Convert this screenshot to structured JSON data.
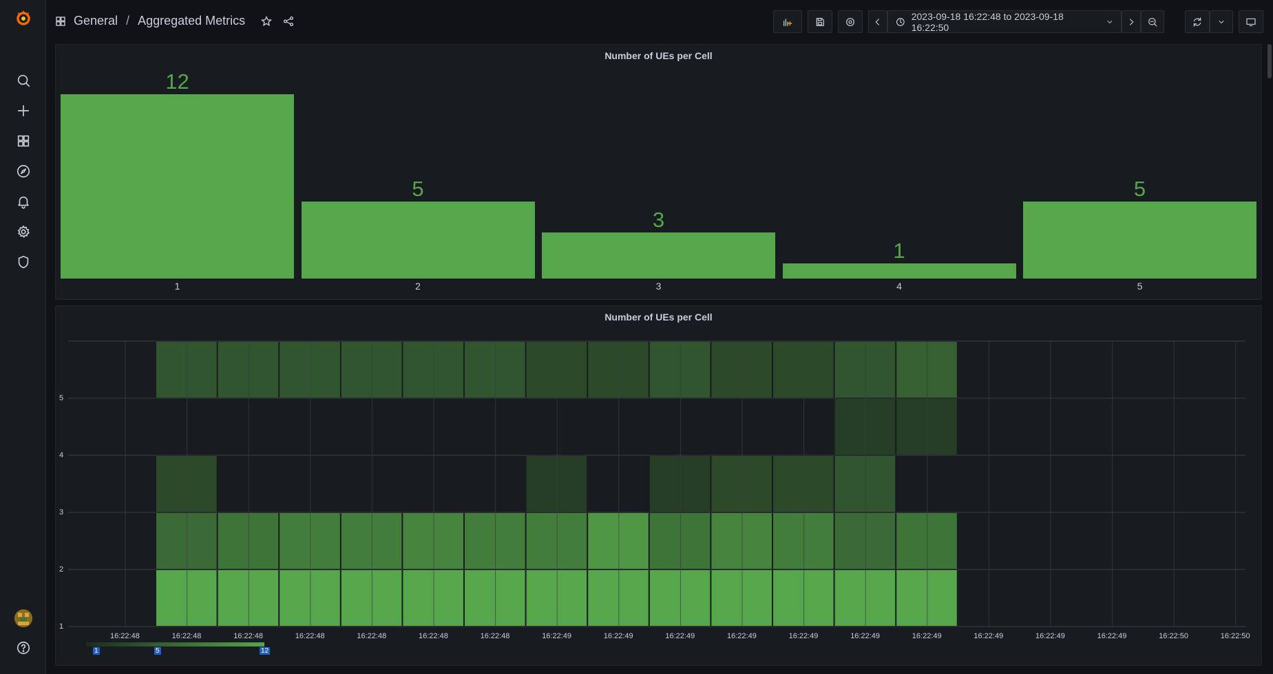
{
  "breadcrumb": {
    "folder": "General",
    "separator": "/",
    "title": "Aggregated Metrics"
  },
  "toolbar": {
    "time_range": "2023-09-18 16:22:48 to 2023-09-18 16:22:50"
  },
  "icons": {
    "logo": "grafana-logo-icon",
    "sidebar": [
      "search-icon",
      "plus-icon",
      "dashboards-icon",
      "explore-compass-icon",
      "alert-bell-icon",
      "gear-icon",
      "shield-icon"
    ],
    "help": "help-icon"
  },
  "colors": {
    "accent": "#56a64b",
    "bg": "#111217",
    "panel": "#181b1f"
  },
  "panels": {
    "bar_gauge": {
      "title": "Number of UEs per Cell"
    },
    "heatmap": {
      "title": "Number of UEs per Cell"
    }
  },
  "chart_data": [
    {
      "type": "bar",
      "title": "Number of UEs per Cell",
      "categories": [
        "1",
        "2",
        "3",
        "4",
        "5"
      ],
      "values": [
        12,
        5,
        3,
        1,
        5
      ],
      "ylim": [
        0,
        12
      ]
    },
    {
      "type": "heatmap",
      "title": "Number of UEs per Cell",
      "y_ticks": [
        "1",
        "2",
        "3",
        "4",
        "5"
      ],
      "x_ticks": [
        "16:22:48",
        "16:22:48",
        "16:22:48",
        "16:22:48",
        "16:22:48",
        "16:22:48",
        "16:22:48",
        "16:22:49",
        "16:22:49",
        "16:22:49",
        "16:22:49",
        "16:22:49",
        "16:22:49",
        "16:22:49",
        "16:22:49",
        "16:22:49",
        "16:22:49",
        "16:22:50",
        "16:22:50"
      ],
      "legend": {
        "min": "1",
        "mid": "5",
        "max": "12"
      },
      "rows_bottom_to_top": [
        [
          12,
          12,
          12,
          12,
          12,
          12,
          12,
          12,
          12,
          12,
          12,
          12,
          12
        ],
        [
          5,
          6,
          7,
          7,
          8,
          7,
          7,
          10,
          6,
          8,
          7,
          5,
          6
        ],
        [
          2,
          0,
          0,
          0,
          0,
          0,
          1,
          0,
          1,
          2,
          2,
          3,
          0
        ],
        [
          0,
          0,
          0,
          0,
          0,
          0,
          0,
          0,
          0,
          0,
          0,
          1,
          1
        ],
        [
          3,
          3,
          3,
          3,
          3,
          3,
          2,
          2,
          3,
          2,
          2,
          3,
          4
        ]
      ]
    }
  ]
}
